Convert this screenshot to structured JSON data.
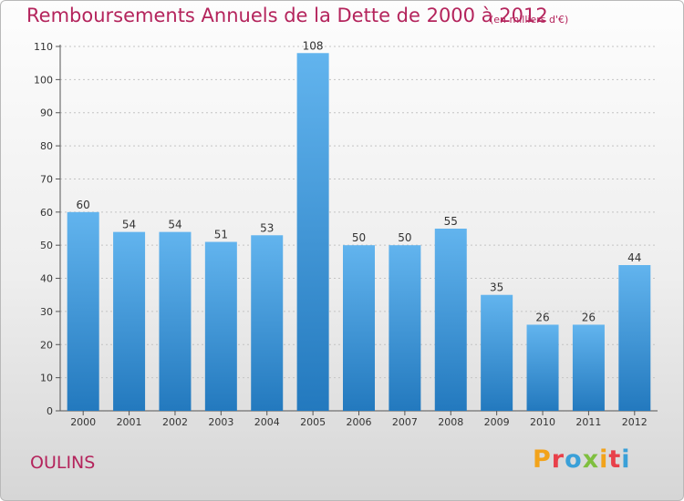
{
  "header": {
    "title": "Remboursements Annuels de la Dette de 2000 à 2012",
    "subtitle": "(en milliers d'€)"
  },
  "footer": {
    "town": "OULINS",
    "brand": "Proxiti",
    "brand_colors": [
      "#f2a31b",
      "#e8404a",
      "#3aa0d8",
      "#7fbf3f",
      "#f2a31b",
      "#e8404a",
      "#3aa0d8"
    ]
  },
  "chart_data": {
    "type": "bar",
    "title": "Remboursements Annuels de la Dette de 2000 à 2012",
    "categories": [
      "2000",
      "2001",
      "2002",
      "2003",
      "2004",
      "2005",
      "2006",
      "2007",
      "2008",
      "2009",
      "2010",
      "2011",
      "2012"
    ],
    "values": [
      60,
      54,
      54,
      51,
      53,
      108,
      50,
      50,
      55,
      35,
      26,
      26,
      44
    ],
    "ylim": [
      0,
      110
    ],
    "yticks": [
      0,
      10,
      20,
      30,
      40,
      50,
      60,
      70,
      80,
      90,
      100,
      110
    ],
    "grid": true,
    "bar_color": "#4a9fe0"
  }
}
